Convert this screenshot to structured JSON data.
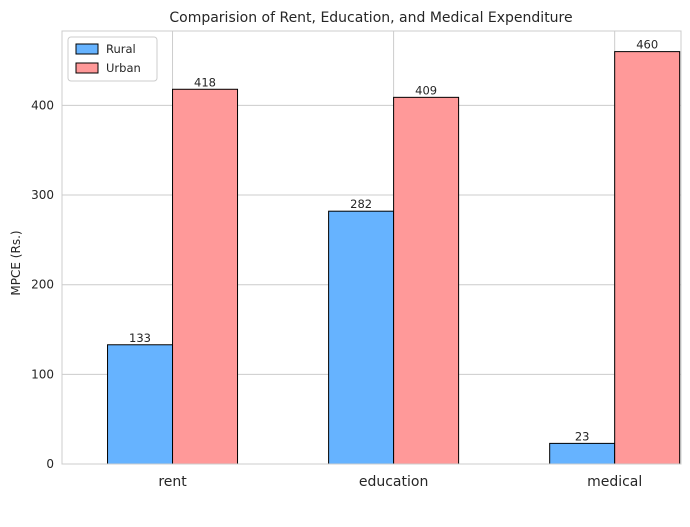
{
  "chart_data": {
    "type": "bar",
    "title": "Comparision of Rent, Education, and Medical Expenditure",
    "xlabel": "",
    "ylabel": "MPCE (Rs.)",
    "categories": [
      "rent",
      "education",
      "medical"
    ],
    "series": [
      {
        "name": "Rural",
        "values": [
          133,
          282,
          23
        ],
        "color": "#66b3ff"
      },
      {
        "name": "Urban",
        "values": [
          418,
          409,
          460
        ],
        "color": "#ff9999"
      }
    ],
    "yticks": [
      0,
      100,
      200,
      300,
      400
    ],
    "ylim": [
      0,
      483
    ],
    "grid": true,
    "legend_position": "top-left",
    "bar_edge_color": "#000000"
  }
}
